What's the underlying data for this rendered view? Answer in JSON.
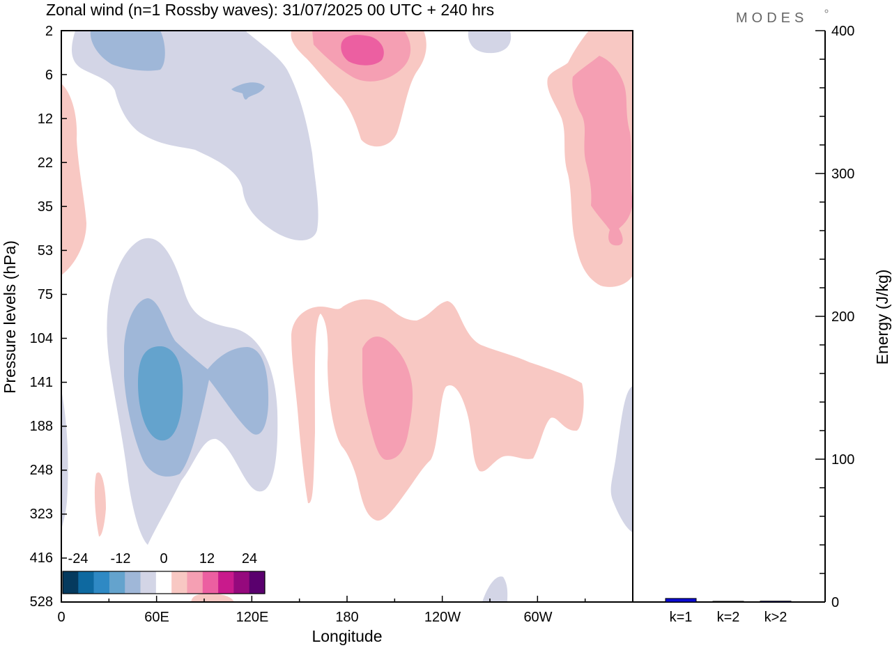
{
  "logo": "MODES",
  "chart_data": [
    {
      "type": "contour",
      "title": "Zonal wind (n=1 Rossby waves):  31/07/2025  00 UTC  + 240 hrs",
      "xlabel": "Longitude",
      "ylabel": "Pressure levels (hPa)",
      "xticks": [
        "0",
        "60E",
        "120E",
        "180",
        "120W",
        "60W"
      ],
      "xlim": [
        0,
        360
      ],
      "yticks": [
        "2",
        "6",
        "12",
        "22",
        "35",
        "53",
        "75",
        "104",
        "141",
        "188",
        "248",
        "323",
        "416",
        "528"
      ],
      "colorbar": {
        "labels": [
          "-24",
          "-12",
          "0",
          "12",
          "24"
        ],
        "colors": [
          "#053a5e",
          "#0e69a0",
          "#2f89c4",
          "#64a3cd",
          "#9fb7d8",
          "#d3d5e6",
          "#ffffff",
          "#f8c8c3",
          "#f59fb3",
          "#ec5fa1",
          "#c91a8c",
          "#95097d",
          "#5a006e"
        ]
      },
      "features": [
        {
          "sign": "negative",
          "level": "weak",
          "region": "stratosphere, 10E-160E, 2-53 hPa"
        },
        {
          "sign": "negative",
          "level": "moderate",
          "region": "upper stratosphere near 40E-60E"
        },
        {
          "sign": "negative",
          "level": "strong",
          "region": "troposphere near 55E-65E, 104-188 hPa"
        },
        {
          "sign": "negative",
          "level": "moderate",
          "region": "troposphere near 100E-120E, 104-188 hPa"
        },
        {
          "sign": "positive",
          "level": "strong",
          "region": "upper stratosphere near 180-170W, 2-6 hPa"
        },
        {
          "sign": "positive",
          "level": "moderate",
          "region": "stratosphere near 30W-0, 6-53 hPa"
        },
        {
          "sign": "positive",
          "level": "moderate",
          "region": "troposphere 180-120W, 75-323 hPa"
        }
      ]
    },
    {
      "type": "bar",
      "ylabel": "Energy (J/kg)",
      "categories": [
        "k=1",
        "k=2",
        "k>2"
      ],
      "values": [
        2.5,
        0.3,
        0.6
      ],
      "ylim": [
        0,
        400
      ],
      "yticks": [
        "0",
        "100",
        "200",
        "300",
        "400"
      ],
      "color": "#0b0bd4"
    }
  ]
}
